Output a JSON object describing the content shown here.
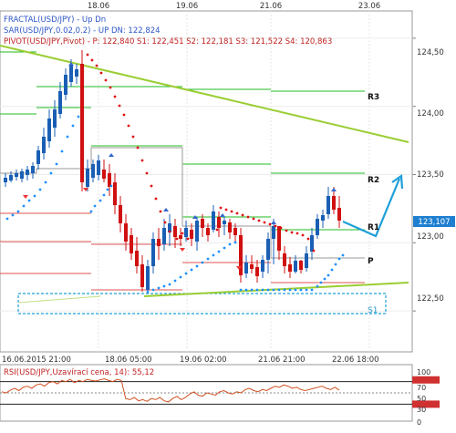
{
  "chart_data": {
    "type": "candlestick",
    "symbol": "USD/JPY",
    "top_dates": [
      "18.06",
      "19.06",
      "21.06",
      "23.06"
    ],
    "bottom_dates": [
      "16.06.2015 21:00",
      "18.06 05:00",
      "19.06 02:00",
      "21.06 21:00",
      "22.06 18:00"
    ],
    "price_ticks": [
      "124,50",
      "124,00",
      "123,50",
      "123,00",
      "122,50"
    ],
    "current_price": "123,107",
    "ylim": [
      122.2,
      124.7
    ],
    "indicators": {
      "fractal": "FRACTAL(USD/JPY) - Up  Dn",
      "sar": "SAR(USD/JPY,0.02,0.2) - UP  DN: 122,824",
      "pivot": "PIVOT(USD/JPY,Pivot) - P: 122,840  S1: 122,451  S2: 122,181  S3: 121,522  S4: 120,863"
    },
    "levels": [
      {
        "name": "R3",
        "value": 124.17
      },
      {
        "name": "R2",
        "value": 123.5
      },
      {
        "name": "R1",
        "value": 123.12
      },
      {
        "name": "P",
        "value": 122.84
      },
      {
        "name": "S1",
        "value": 122.45
      }
    ],
    "rsi": {
      "label": "RSI(USD/JPY,Uzavírací cena, 14): 55,12",
      "ticks": [
        "100",
        "70",
        "50",
        "30",
        "0"
      ]
    },
    "colors": {
      "up_candle": "#1a5fb4",
      "down_candle": "#d01010",
      "sar_up": "#1e90ff",
      "sar_down": "#e01010",
      "trendline": "#9acd32",
      "pivot_level": "#22bb22",
      "support_level": "#e05050",
      "forecast_arrow": "#1e9fd8",
      "price_tag": "#1e7fd0"
    }
  }
}
